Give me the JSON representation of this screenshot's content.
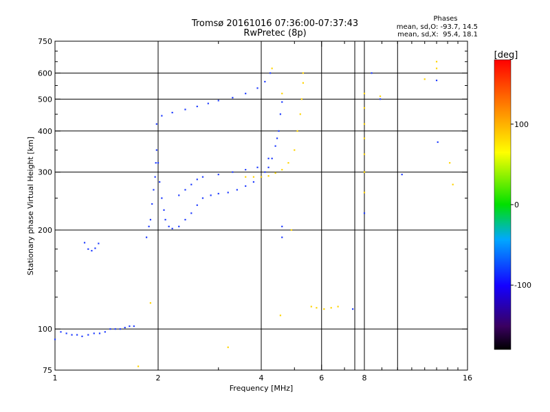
{
  "title_line1": "Tromsø 20161016 07:36:00-07:37:43",
  "title_line2": "RwPretec (8p)",
  "phase_panel": {
    "heading": "Phases",
    "o_label": "mean, sd,O: -93.7, 14.5",
    "x_label": "mean, sd,X:  95.4, 18.1"
  },
  "chart_data": {
    "type": "scatter",
    "title": "Tromsø 20161016 07:36:00-07:37:43",
    "subtitle": "RwPretec (8p)",
    "xlabel": "Frequency [MHz]",
    "ylabel": "Stationary phase Virtual Height [km]",
    "xscale": "log2",
    "yscale": "log",
    "xlim": [
      1,
      16
    ],
    "ylim": [
      75,
      750
    ],
    "xticks": [
      1,
      2,
      4,
      6,
      8,
      16
    ],
    "xtick_labels": [
      "1",
      "2",
      "4",
      "6",
      "8",
      "16"
    ],
    "xgrid": [
      2,
      4,
      6,
      7.5,
      8,
      10
    ],
    "yticks": [
      75,
      100,
      200,
      300,
      400,
      500,
      600,
      750
    ],
    "ytick_labels": [
      "75",
      "100",
      "200",
      "300",
      "400",
      "500",
      "600",
      "750"
    ],
    "ygrid": [
      100,
      200,
      300,
      400,
      500,
      600
    ],
    "grid": true,
    "colorbar": {
      "label": "[deg]",
      "range": [
        -180,
        180
      ],
      "ticks": [
        100,
        0,
        -100
      ],
      "tick_labels": [
        "100",
        "0",
        "-100"
      ]
    },
    "series": [
      {
        "name": "O-mode",
        "phase": -95,
        "color": "#1f3cff",
        "points": [
          [
            1.0,
            93
          ],
          [
            1.04,
            98
          ],
          [
            1.08,
            97
          ],
          [
            1.12,
            96
          ],
          [
            1.16,
            96
          ],
          [
            1.2,
            95
          ],
          [
            1.25,
            96
          ],
          [
            1.3,
            97
          ],
          [
            1.35,
            97
          ],
          [
            1.4,
            98
          ],
          [
            1.45,
            100
          ],
          [
            1.5,
            100
          ],
          [
            1.55,
            100
          ],
          [
            1.6,
            101
          ],
          [
            1.65,
            102
          ],
          [
            1.7,
            102
          ],
          [
            1.22,
            183
          ],
          [
            1.25,
            175
          ],
          [
            1.28,
            173
          ],
          [
            1.31,
            176
          ],
          [
            1.34,
            182
          ],
          [
            1.85,
            190
          ],
          [
            1.88,
            205
          ],
          [
            1.9,
            215
          ],
          [
            1.92,
            240
          ],
          [
            1.94,
            265
          ],
          [
            1.96,
            290
          ],
          [
            1.97,
            320
          ],
          [
            1.98,
            350
          ],
          [
            2.0,
            320
          ],
          [
            2.02,
            280
          ],
          [
            2.05,
            250
          ],
          [
            2.08,
            230
          ],
          [
            2.1,
            215
          ],
          [
            2.15,
            205
          ],
          [
            2.2,
            202
          ],
          [
            2.3,
            205
          ],
          [
            2.4,
            215
          ],
          [
            2.5,
            225
          ],
          [
            2.6,
            238
          ],
          [
            2.7,
            250
          ],
          [
            2.85,
            255
          ],
          [
            3.0,
            258
          ],
          [
            3.2,
            260
          ],
          [
            3.4,
            265
          ],
          [
            3.6,
            272
          ],
          [
            3.8,
            280
          ],
          [
            4.0,
            290
          ],
          [
            4.1,
            300
          ],
          [
            4.2,
            310
          ],
          [
            4.3,
            330
          ],
          [
            4.4,
            360
          ],
          [
            4.5,
            400
          ],
          [
            4.55,
            450
          ],
          [
            4.6,
            490
          ],
          [
            1.98,
            420
          ],
          [
            2.05,
            445
          ],
          [
            2.2,
            455
          ],
          [
            2.4,
            465
          ],
          [
            2.6,
            475
          ],
          [
            2.8,
            485
          ],
          [
            3.0,
            495
          ],
          [
            3.3,
            505
          ],
          [
            3.6,
            520
          ],
          [
            3.9,
            540
          ],
          [
            4.1,
            565
          ],
          [
            4.25,
            600
          ],
          [
            2.3,
            255
          ],
          [
            2.4,
            265
          ],
          [
            2.5,
            275
          ],
          [
            2.6,
            285
          ],
          [
            2.7,
            290
          ],
          [
            3.0,
            295
          ],
          [
            3.3,
            300
          ],
          [
            3.6,
            305
          ],
          [
            3.9,
            310
          ],
          [
            4.2,
            330
          ],
          [
            4.45,
            380
          ],
          [
            4.6,
            205
          ],
          [
            4.6,
            190
          ],
          [
            7.4,
            115
          ],
          [
            8.0,
            225
          ],
          [
            8.4,
            600
          ],
          [
            8.9,
            500
          ],
          [
            10.3,
            295
          ],
          [
            13.0,
            570
          ],
          [
            13.1,
            370
          ]
        ]
      },
      {
        "name": "X-mode",
        "phase": 95,
        "color": "#ffd400",
        "points": [
          [
            3.6,
            290
          ],
          [
            3.8,
            290
          ],
          [
            4.0,
            290
          ],
          [
            4.2,
            292
          ],
          [
            4.4,
            298
          ],
          [
            4.6,
            305
          ],
          [
            4.8,
            320
          ],
          [
            5.0,
            350
          ],
          [
            5.1,
            400
          ],
          [
            5.2,
            450
          ],
          [
            5.25,
            500
          ],
          [
            5.3,
            560
          ],
          [
            5.3,
            600
          ],
          [
            4.3,
            620
          ],
          [
            4.6,
            520
          ],
          [
            4.9,
            200
          ],
          [
            4.55,
            110
          ],
          [
            5.6,
            117
          ],
          [
            5.8,
            116
          ],
          [
            6.1,
            115
          ],
          [
            6.4,
            116
          ],
          [
            6.7,
            117
          ],
          [
            8.0,
            520
          ],
          [
            8.0,
            470
          ],
          [
            8.0,
            420
          ],
          [
            8.0,
            380
          ],
          [
            8.0,
            340
          ],
          [
            8.0,
            300
          ],
          [
            8.0,
            260
          ],
          [
            8.9,
            510
          ],
          [
            12.0,
            575
          ],
          [
            13.0,
            620
          ],
          [
            13.0,
            650
          ],
          [
            14.2,
            320
          ],
          [
            14.5,
            275
          ],
          [
            3.2,
            88
          ],
          [
            1.75,
            77
          ],
          [
            1.9,
            120
          ]
        ]
      }
    ]
  }
}
